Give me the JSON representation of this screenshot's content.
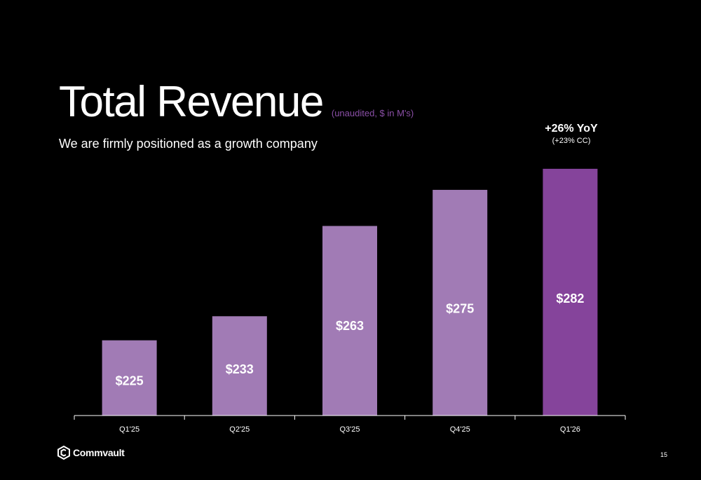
{
  "slide": {
    "title": "Total Revenue",
    "title_note": "(unaudited, $ in M's)",
    "subtitle": "We are firmly positioned as a growth company",
    "yoy_label": "+26% YoY",
    "yoy_sub": "(+23% CC)",
    "brand": "Commvault",
    "page_number": "15"
  },
  "colors": {
    "background": "#000000",
    "bar": "#a17bb5",
    "bar_highlight": "#85449b",
    "axis": "#ffffff",
    "title_note": "#8a4fa6"
  },
  "chart_data": {
    "type": "bar",
    "title": "Total Revenue",
    "xlabel": "",
    "ylabel": "",
    "categories": [
      "Q1'25",
      "Q2'25",
      "Q3'25",
      "Q4'25",
      "Q1'26"
    ],
    "values": [
      225,
      233,
      263,
      275,
      282
    ],
    "value_labels": [
      "$225",
      "$233",
      "$263",
      "$275",
      "$282"
    ],
    "highlight_index": 4,
    "ylim": [
      200,
      285
    ],
    "grid": false,
    "legend": "none"
  }
}
